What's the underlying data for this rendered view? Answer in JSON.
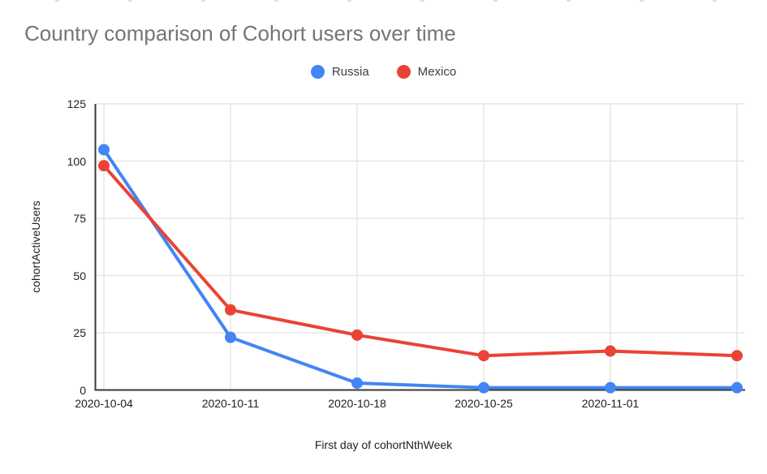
{
  "chart_data": {
    "type": "line",
    "title": "Country comparison of Cohort users over time",
    "xlabel": "First day of cohortNthWeek",
    "ylabel": "cohortActiveUsers",
    "x_tick_labels": [
      "2020-10-04",
      "2020-10-11",
      "2020-10-18",
      "2020-10-25",
      "2020-11-01",
      ""
    ],
    "num_points": 6,
    "y_ticks": [
      0,
      25,
      50,
      75,
      100,
      125
    ],
    "ylim": [
      0,
      125
    ],
    "grid": true,
    "legend_position": "top",
    "series": [
      {
        "name": "Russia",
        "color": "#4285F4",
        "values": [
          105,
          23,
          3,
          1,
          1,
          1
        ]
      },
      {
        "name": "Mexico",
        "color": "#EA4335",
        "values": [
          98,
          35,
          24,
          15,
          17,
          15
        ]
      }
    ],
    "colors": {
      "title_text": "#757575",
      "tick_text": "#212121",
      "gridline": "#e6e6e6",
      "axis_line": "#3a3a3a",
      "background": "#ffffff"
    }
  }
}
